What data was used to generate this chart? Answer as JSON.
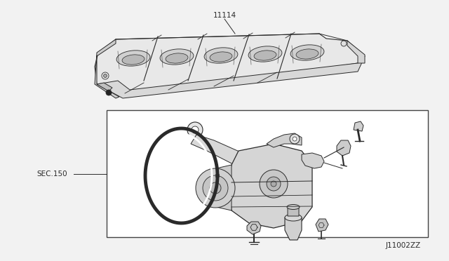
{
  "background_color": "#f2f2f2",
  "box_bg": "#ffffff",
  "line_color": "#2a2a2a",
  "text_color": "#2a2a2a",
  "part_number_top": "11114",
  "label_sec150": "SEC.150",
  "diagram_code": "J11002ZZ",
  "figw": 6.4,
  "figh": 3.72,
  "dpi": 100
}
